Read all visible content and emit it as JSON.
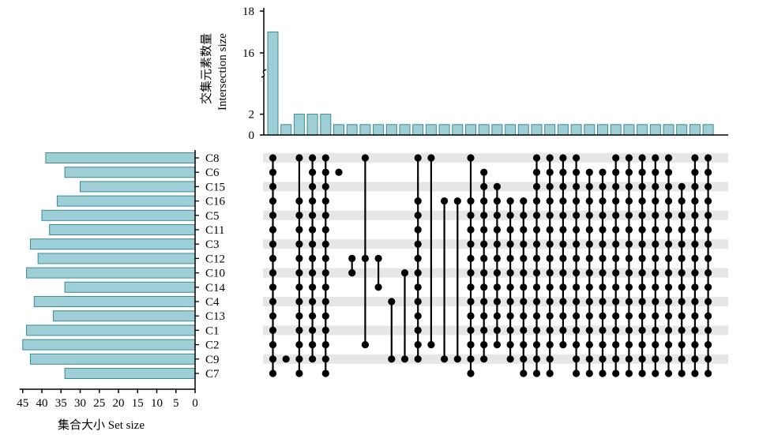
{
  "chart_data": {
    "type": "upset",
    "intersection_axis": {
      "label_cn": "交集元素数量",
      "label_en": "Intersection size",
      "ticks_lower": [
        0,
        2
      ],
      "ticks_upper": [
        16,
        18
      ],
      "break": true
    },
    "set_size_axis": {
      "label": "集合大小 Set size",
      "ticks": [
        45,
        40,
        35,
        30,
        25,
        20,
        15,
        10,
        5,
        0
      ],
      "xlim": [
        0,
        45
      ],
      "reversed": true
    },
    "sets": [
      {
        "name": "C8",
        "size": 39
      },
      {
        "name": "C6",
        "size": 34
      },
      {
        "name": "C15",
        "size": 30
      },
      {
        "name": "C16",
        "size": 36
      },
      {
        "name": "C5",
        "size": 40
      },
      {
        "name": "C11",
        "size": 38
      },
      {
        "name": "C3",
        "size": 43
      },
      {
        "name": "C12",
        "size": 41
      },
      {
        "name": "C10",
        "size": 44
      },
      {
        "name": "C14",
        "size": 34
      },
      {
        "name": "C4",
        "size": 42
      },
      {
        "name": "C13",
        "size": 37
      },
      {
        "name": "C1",
        "size": 44
      },
      {
        "name": "C2",
        "size": 45
      },
      {
        "name": "C9",
        "size": 43
      },
      {
        "name": "C7",
        "size": 34
      }
    ],
    "intersections": [
      {
        "size": 17,
        "members": [
          "C8",
          "C6",
          "C15",
          "C16",
          "C5",
          "C11",
          "C3",
          "C12",
          "C10",
          "C14",
          "C4",
          "C13",
          "C1",
          "C2",
          "C9",
          "C7"
        ]
      },
      {
        "size": 1,
        "members": [
          "C9"
        ]
      },
      {
        "size": 2,
        "members": [
          "C8",
          "C16",
          "C5",
          "C11",
          "C3",
          "C12",
          "C10",
          "C14",
          "C4",
          "C13",
          "C1",
          "C2",
          "C9",
          "C7"
        ]
      },
      {
        "size": 2,
        "members": [
          "C8",
          "C6",
          "C15",
          "C16",
          "C5",
          "C11",
          "C3",
          "C12",
          "C10",
          "C14",
          "C4",
          "C13",
          "C1",
          "C2",
          "C9"
        ]
      },
      {
        "size": 2,
        "members": [
          "C8",
          "C6",
          "C15",
          "C16",
          "C5",
          "C11",
          "C3",
          "C12",
          "C10",
          "C14",
          "C4",
          "C13",
          "C1",
          "C2",
          "C9",
          "C7"
        ]
      },
      {
        "size": 1,
        "members": [
          "C6"
        ]
      },
      {
        "size": 1,
        "members": [
          "C12",
          "C10"
        ]
      },
      {
        "size": 1,
        "members": [
          "C8",
          "C12",
          "C2"
        ]
      },
      {
        "size": 1,
        "members": [
          "C12",
          "C14"
        ]
      },
      {
        "size": 1,
        "members": [
          "C4",
          "C9"
        ]
      },
      {
        "size": 1,
        "members": [
          "C10",
          "C9"
        ]
      },
      {
        "size": 1,
        "members": [
          "C8",
          "C16",
          "C5",
          "C11",
          "C3",
          "C12",
          "C10",
          "C14",
          "C4",
          "C13",
          "C1",
          "C2",
          "C9"
        ]
      },
      {
        "size": 1,
        "members": [
          "C8",
          "C2"
        ]
      },
      {
        "size": 1,
        "members": [
          "C16",
          "C9"
        ]
      },
      {
        "size": 1,
        "members": [
          "C16",
          "C9"
        ]
      },
      {
        "size": 1,
        "members": [
          "C8",
          "C16",
          "C5",
          "C11",
          "C3",
          "C12",
          "C10",
          "C14",
          "C4",
          "C13",
          "C1",
          "C2",
          "C9",
          "C7"
        ]
      },
      {
        "size": 1,
        "members": [
          "C6",
          "C15",
          "C16",
          "C5",
          "C11",
          "C3",
          "C12",
          "C10",
          "C14",
          "C4",
          "C13",
          "C1",
          "C2",
          "C9"
        ]
      },
      {
        "size": 1,
        "members": [
          "C15",
          "C16",
          "C5",
          "C11",
          "C3",
          "C12",
          "C10",
          "C14",
          "C4",
          "C13",
          "C1",
          "C2"
        ]
      },
      {
        "size": 1,
        "members": [
          "C16",
          "C5",
          "C11",
          "C3",
          "C12",
          "C10",
          "C14",
          "C4",
          "C13",
          "C1",
          "C2",
          "C9"
        ]
      },
      {
        "size": 1,
        "members": [
          "C16",
          "C5",
          "C11",
          "C3",
          "C12",
          "C10",
          "C14",
          "C4",
          "C13",
          "C1",
          "C2",
          "C9",
          "C7"
        ]
      },
      {
        "size": 1,
        "members": [
          "C8",
          "C6",
          "C15",
          "C16",
          "C5",
          "C11",
          "C3",
          "C12",
          "C10",
          "C14",
          "C4",
          "C13",
          "C1",
          "C2",
          "C9",
          "C7"
        ]
      },
      {
        "size": 1,
        "members": [
          "C8",
          "C6",
          "C15",
          "C16",
          "C5",
          "C11",
          "C3",
          "C12",
          "C10",
          "C14",
          "C4",
          "C13",
          "C1",
          "C2",
          "C9",
          "C7"
        ]
      },
      {
        "size": 1,
        "members": [
          "C8",
          "C6",
          "C15",
          "C16",
          "C5",
          "C11",
          "C3",
          "C12",
          "C10",
          "C14",
          "C4",
          "C13",
          "C1",
          "C2"
        ]
      },
      {
        "size": 1,
        "members": [
          "C8",
          "C6",
          "C15",
          "C16",
          "C5",
          "C11",
          "C3",
          "C12",
          "C10",
          "C14",
          "C4",
          "C13",
          "C1",
          "C2",
          "C9",
          "C7"
        ]
      },
      {
        "size": 1,
        "members": [
          "C6",
          "C15",
          "C16",
          "C5",
          "C11",
          "C3",
          "C12",
          "C10",
          "C14",
          "C4",
          "C13",
          "C1",
          "C2",
          "C9",
          "C7"
        ]
      },
      {
        "size": 1,
        "members": [
          "C6",
          "C15",
          "C16",
          "C5",
          "C11",
          "C3",
          "C12",
          "C10",
          "C14",
          "C4",
          "C13",
          "C1",
          "C2",
          "C9",
          "C7"
        ]
      },
      {
        "size": 1,
        "members": [
          "C8",
          "C6",
          "C15",
          "C16",
          "C5",
          "C11",
          "C3",
          "C12",
          "C10",
          "C14",
          "C4",
          "C13",
          "C1",
          "C2",
          "C9",
          "C7"
        ]
      },
      {
        "size": 1,
        "members": [
          "C8",
          "C6",
          "C15",
          "C16",
          "C5",
          "C11",
          "C3",
          "C12",
          "C10",
          "C14",
          "C4",
          "C13",
          "C1",
          "C2",
          "C9",
          "C7"
        ]
      },
      {
        "size": 1,
        "members": [
          "C8",
          "C6",
          "C15",
          "C16",
          "C5",
          "C11",
          "C3",
          "C12",
          "C10",
          "C14",
          "C4",
          "C13",
          "C1",
          "C2",
          "C9",
          "C7"
        ]
      },
      {
        "size": 1,
        "members": [
          "C8",
          "C6",
          "C15",
          "C16",
          "C5",
          "C11",
          "C3",
          "C12",
          "C10",
          "C14",
          "C4",
          "C13",
          "C1",
          "C2",
          "C9",
          "C7"
        ]
      },
      {
        "size": 1,
        "members": [
          "C8",
          "C6",
          "C15",
          "C16",
          "C5",
          "C11",
          "C3",
          "C12",
          "C10",
          "C14",
          "C4",
          "C13",
          "C1",
          "C2",
          "C9",
          "C7"
        ]
      },
      {
        "size": 1,
        "members": [
          "C15",
          "C16",
          "C5",
          "C11",
          "C3",
          "C12",
          "C10",
          "C14",
          "C4",
          "C13",
          "C1",
          "C2",
          "C9",
          "C7"
        ]
      },
      {
        "size": 1,
        "members": [
          "C8",
          "C6",
          "C15",
          "C16",
          "C5",
          "C11",
          "C3",
          "C12",
          "C10",
          "C14",
          "C4",
          "C13",
          "C1",
          "C2",
          "C9",
          "C7"
        ]
      },
      {
        "size": 1,
        "members": [
          "C8",
          "C6",
          "C15",
          "C16",
          "C5",
          "C11",
          "C3",
          "C12",
          "C10",
          "C14",
          "C4",
          "C13",
          "C1",
          "C2",
          "C9",
          "C7"
        ]
      }
    ],
    "colors": {
      "bar_fill": "#9ecfd6",
      "bar_stroke": "#3d8a96",
      "dot": "#000000",
      "band": "#e6e6e6"
    }
  }
}
